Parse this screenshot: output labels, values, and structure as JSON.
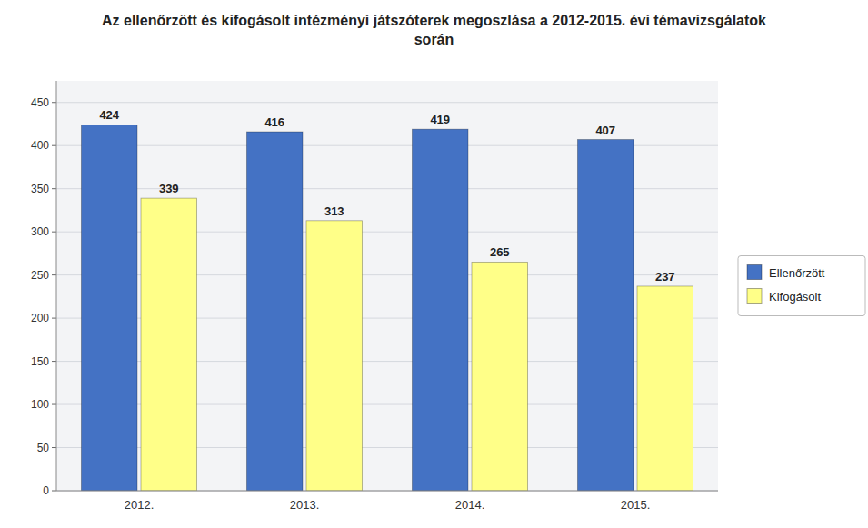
{
  "chart_data": {
    "type": "bar",
    "title": "Az ellenőrzött és kifogásolt intézményi játszóterek megoszlása a 2012-2015. évi témavizsgálatok során",
    "categories": [
      "2012.",
      "2013.",
      "2014.",
      "2015."
    ],
    "series": [
      {
        "name": "Ellenőrzött",
        "color": "#4472C4",
        "values": [
          424,
          416,
          419,
          407
        ]
      },
      {
        "name": "Kifogásolt",
        "color": "#FFFF88",
        "values": [
          339,
          313,
          265,
          237
        ]
      }
    ],
    "ylim": [
      0,
      475
    ],
    "yticks": [
      0,
      50,
      100,
      150,
      200,
      250,
      300,
      350,
      400,
      450
    ],
    "grid": true,
    "legend": "right",
    "data_labels": true
  }
}
